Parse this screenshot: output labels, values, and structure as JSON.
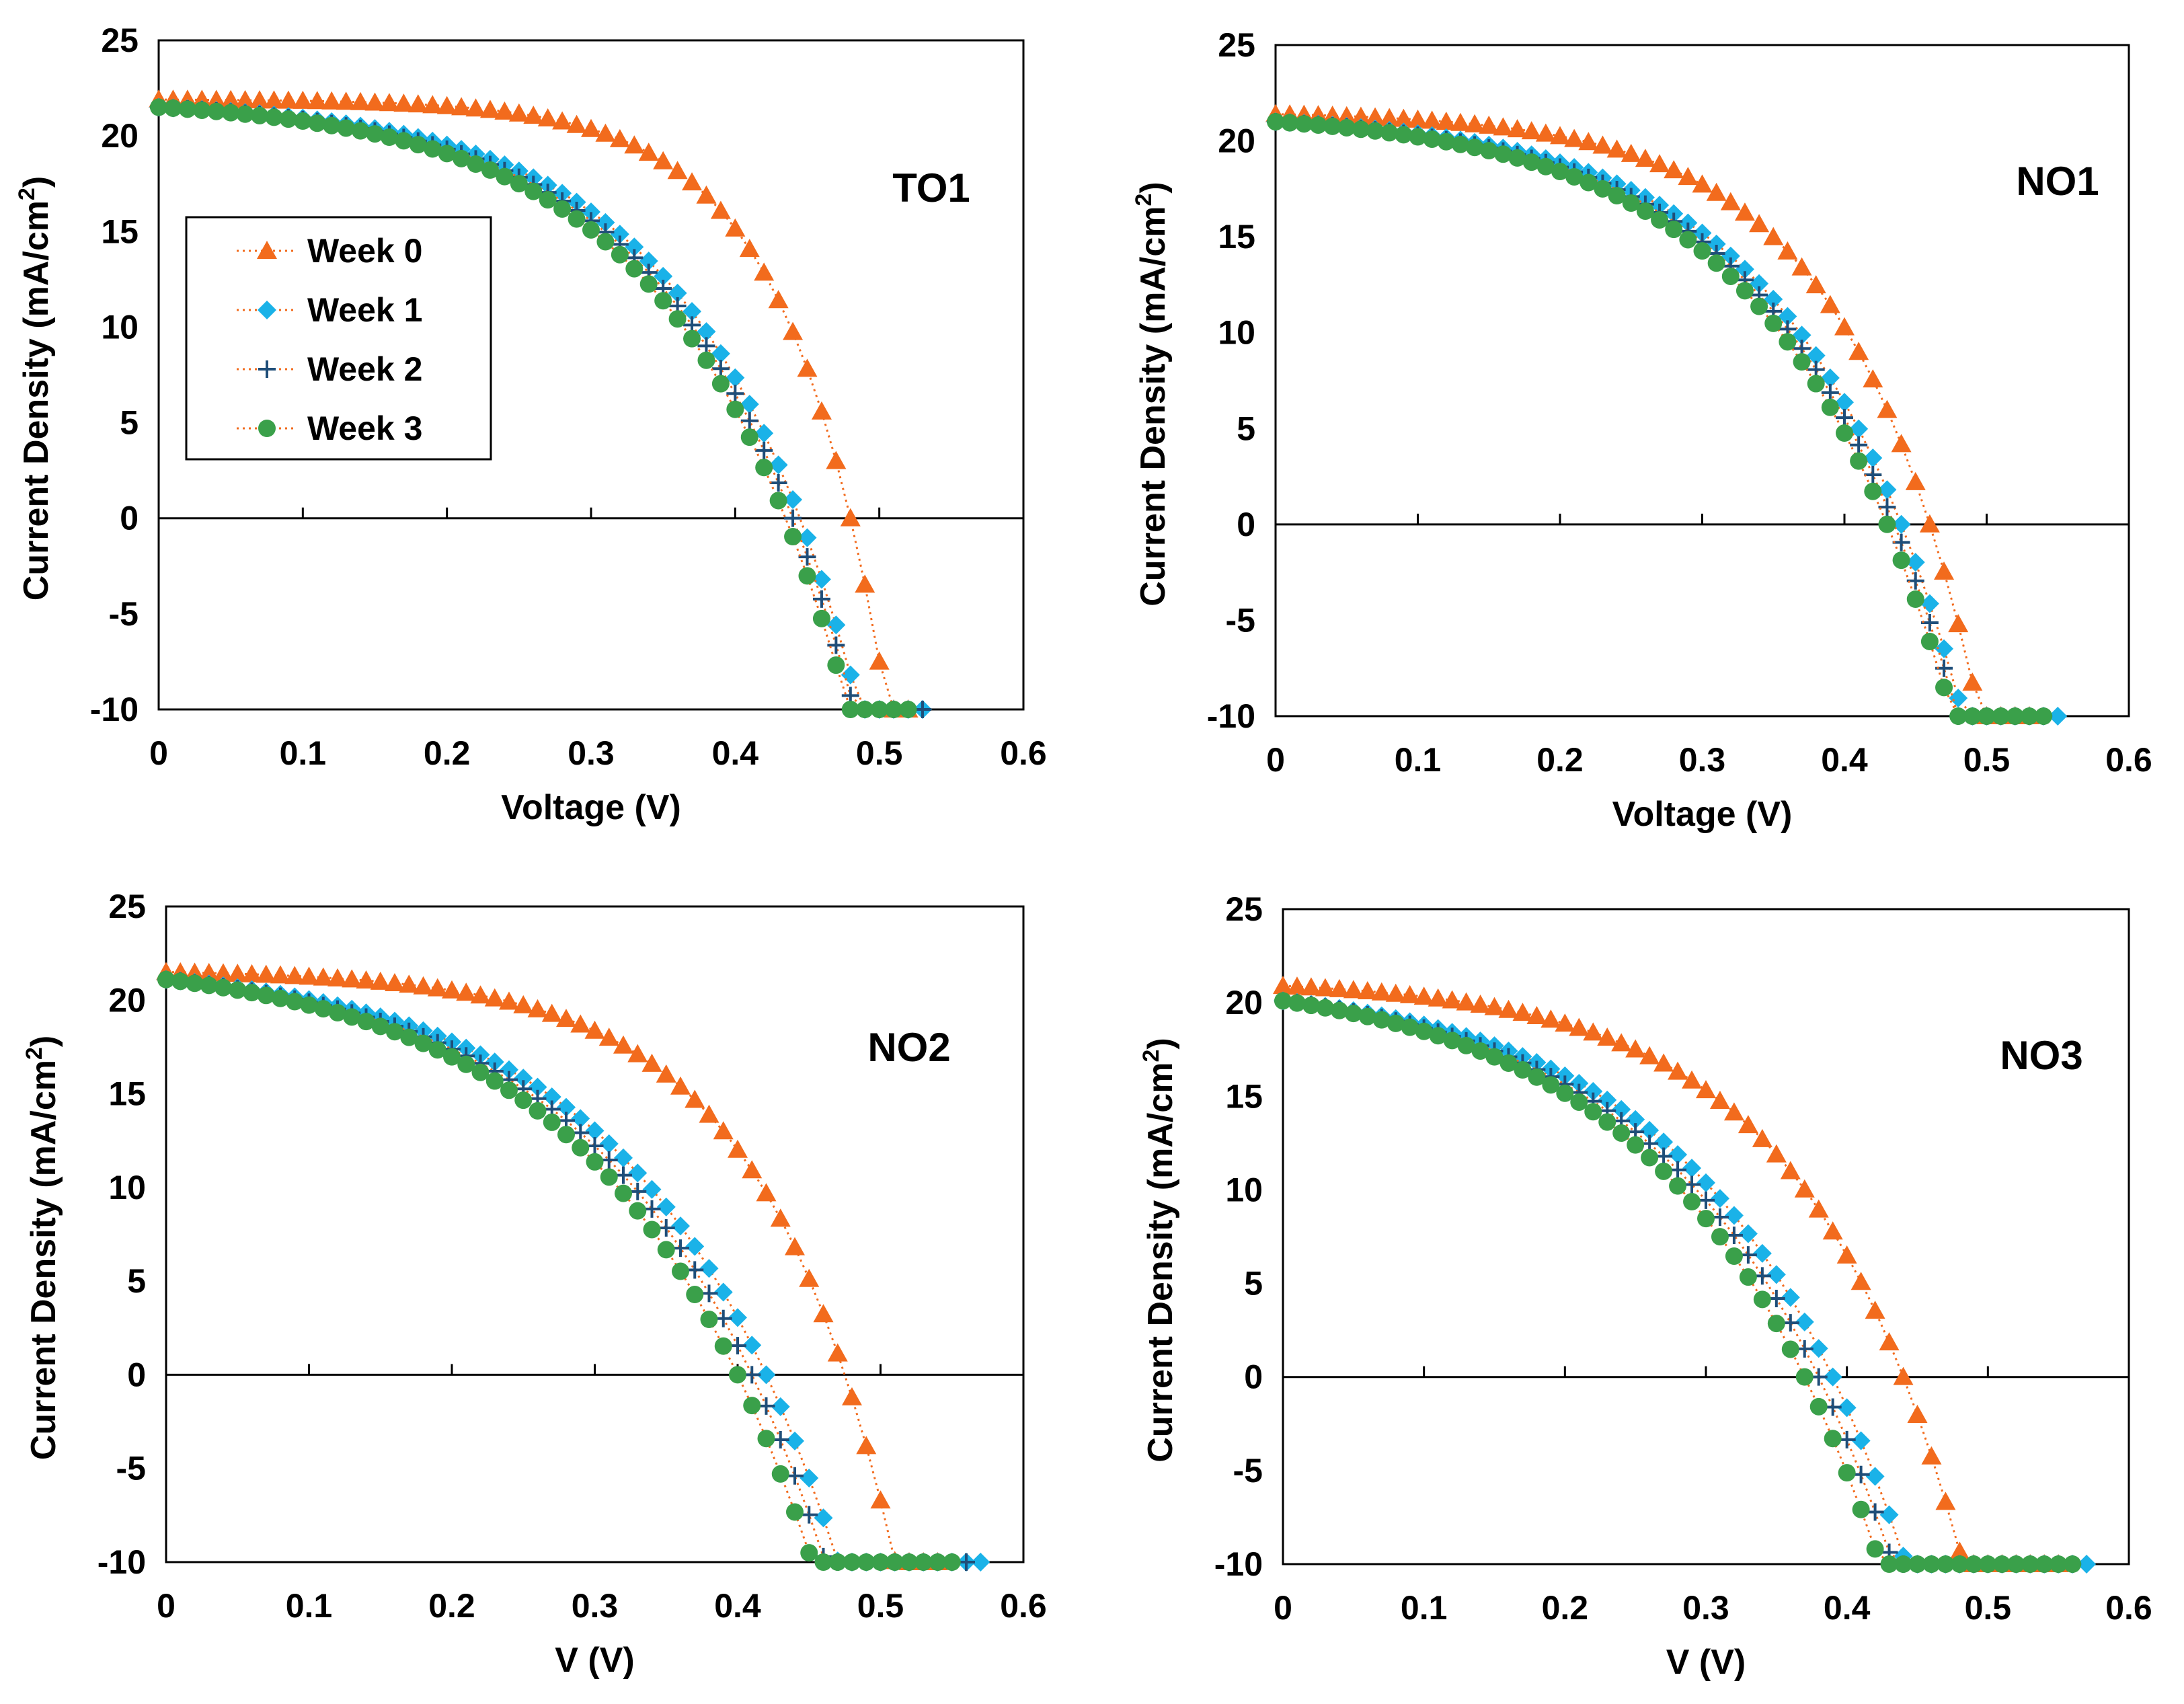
{
  "series_styles": [
    {
      "name": "Week 0",
      "color": "#f26b1d",
      "marker": "triangle"
    },
    {
      "name": "Week 1",
      "color": "#1ab2e8",
      "marker": "diamond"
    },
    {
      "name": "Week 2",
      "color": "#1f4e79",
      "marker": "plus"
    },
    {
      "name": "Week 3",
      "color": "#3aa04a",
      "marker": "circle"
    }
  ],
  "chart_data": [
    {
      "type": "line",
      "panel": "TO1",
      "title": "TO1",
      "xlabel": "Voltage (V)",
      "ylabel": "Current Density  (mA/cm²)",
      "ylabel_main": "Current Density  (mA/cm",
      "ylabel_sup": "2",
      "ylabel_end": ")",
      "xlim": [
        0,
        0.6
      ],
      "ylim": [
        -10,
        25
      ],
      "xticks": [
        "0",
        "0.1",
        "0.2",
        "0.3",
        "0.4",
        "0.5",
        "0.6"
      ],
      "yticks": [
        "-10",
        "-5",
        "0",
        "5",
        "10",
        "15",
        "20",
        "25"
      ],
      "legend": {
        "position": "left",
        "entries": [
          "Week 0",
          "Week 1",
          "Week 2",
          "Week 3"
        ]
      },
      "curves": [
        {
          "name": "Week 0",
          "jsc": 21.9,
          "voc": 0.48,
          "ff": 0.62,
          "vend": 0.52
        },
        {
          "name": "Week 1",
          "jsc": 21.5,
          "voc": 0.445,
          "ff": 0.5,
          "vend": 0.532
        },
        {
          "name": "Week 2",
          "jsc": 21.5,
          "voc": 0.44,
          "ff": 0.49,
          "vend": 0.53
        },
        {
          "name": "Week 3",
          "jsc": 21.5,
          "voc": 0.435,
          "ff": 0.48,
          "vend": 0.528
        }
      ]
    },
    {
      "type": "line",
      "panel": "NO1",
      "title": "NO1",
      "xlabel": "Voltage (V)",
      "ylabel": "Current Density  (mA/cm²)",
      "ylabel_main": "Current Density  (mA/cm",
      "ylabel_sup": "2",
      "ylabel_end": ")",
      "xlim": [
        0,
        0.6
      ],
      "ylim": [
        -10,
        25
      ],
      "xticks": [
        "0",
        "0.1",
        "0.2",
        "0.3",
        "0.4",
        "0.5",
        "0.6"
      ],
      "yticks": [
        "-10",
        "-5",
        "0",
        "5",
        "10",
        "15",
        "20",
        "25"
      ],
      "curves": [
        {
          "name": "Week 0",
          "jsc": 21.4,
          "voc": 0.46,
          "ff": 0.55,
          "vend": 0.53
        },
        {
          "name": "Week 1",
          "jsc": 21.0,
          "voc": 0.44,
          "ff": 0.49,
          "vend": 0.552
        },
        {
          "name": "Week 2",
          "jsc": 21.0,
          "voc": 0.435,
          "ff": 0.48,
          "vend": 0.548
        },
        {
          "name": "Week 3",
          "jsc": 21.0,
          "voc": 0.43,
          "ff": 0.47,
          "vend": 0.54
        }
      ]
    },
    {
      "type": "line",
      "panel": "NO2",
      "title": "NO2",
      "xlabel": "V (V)",
      "ylabel": "Current Density  (mA/cm²)",
      "ylabel_main": "Current Density  (mA/cm",
      "ylabel_sup": "2",
      "ylabel_end": ")",
      "xlim": [
        0,
        0.6
      ],
      "ylim": [
        -10,
        25
      ],
      "xticks": [
        "0",
        "0.1",
        "0.2",
        "0.3",
        "0.4",
        "0.5",
        "0.6"
      ],
      "yticks": [
        "-10",
        "-5",
        "0",
        "5",
        "10",
        "15",
        "20",
        "25"
      ],
      "curves": [
        {
          "name": "Week 0",
          "jsc": 21.5,
          "voc": 0.475,
          "ff": 0.55,
          "vend": 0.545
        },
        {
          "name": "Week 1",
          "jsc": 21.1,
          "voc": 0.42,
          "ff": 0.43,
          "vend": 0.572
        },
        {
          "name": "Week 2",
          "jsc": 21.1,
          "voc": 0.41,
          "ff": 0.42,
          "vend": 0.562
        },
        {
          "name": "Week 3",
          "jsc": 21.1,
          "voc": 0.4,
          "ff": 0.41,
          "vend": 0.553
        }
      ]
    },
    {
      "type": "line",
      "panel": "NO3",
      "title": "NO3",
      "xlabel": "V (V)",
      "ylabel": "Current Density  (mA/cm²)",
      "ylabel_main": "Current Density  (mA/cm",
      "ylabel_sup": "2",
      "ylabel_end": ")",
      "xlim": [
        0,
        0.6
      ],
      "ylim": [
        -10,
        25
      ],
      "xticks": [
        "0",
        "0.1",
        "0.2",
        "0.3",
        "0.4",
        "0.5",
        "0.6"
      ],
      "yticks": [
        "-10",
        "-5",
        "0",
        "5",
        "10",
        "15",
        "20",
        "25"
      ],
      "curves": [
        {
          "name": "Week 0",
          "jsc": 20.9,
          "voc": 0.44,
          "ff": 0.5,
          "vend": 0.55
        },
        {
          "name": "Week 1",
          "jsc": 20.1,
          "voc": 0.39,
          "ff": 0.43,
          "vend": 0.572
        },
        {
          "name": "Week 2",
          "jsc": 20.1,
          "voc": 0.38,
          "ff": 0.42,
          "vend": 0.566
        },
        {
          "name": "Week 3",
          "jsc": 20.1,
          "voc": 0.37,
          "ff": 0.41,
          "vend": 0.56
        }
      ]
    }
  ]
}
